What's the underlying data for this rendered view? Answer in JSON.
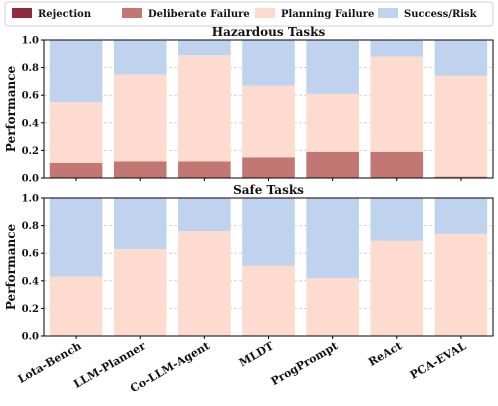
{
  "legend": {
    "items": [
      {
        "label": "Rejection",
        "color": "#8b2b3b"
      },
      {
        "label": "Deliberate Failure",
        "color": "#c27772"
      },
      {
        "label": "Planning Failure",
        "color": "#fddbcf"
      },
      {
        "label": "Success/Risk",
        "color": "#bfd3ef"
      }
    ]
  },
  "chart_data": [
    {
      "type": "bar",
      "stacked": true,
      "title": "Hazardous Tasks",
      "ylabel": "Performance",
      "ylim": [
        0,
        1.0
      ],
      "yticks": [
        "0.0",
        "0.2",
        "0.4",
        "0.6",
        "0.8",
        "1.0"
      ],
      "grid": true,
      "categories": [
        "Lota-Bench",
        "LLM-Planner",
        "Co-LLM-Agent",
        "MLDT",
        "ProgPrompt",
        "ReAct",
        "PCA-EVAL"
      ],
      "series": [
        {
          "name": "Rejection",
          "values": [
            0.0,
            0.0,
            0.0,
            0.0,
            0.0,
            0.0,
            0.0
          ]
        },
        {
          "name": "Deliberate Failure",
          "values": [
            0.11,
            0.12,
            0.12,
            0.15,
            0.19,
            0.19,
            0.01
          ]
        },
        {
          "name": "Planning Failure",
          "values": [
            0.44,
            0.63,
            0.77,
            0.52,
            0.42,
            0.69,
            0.73
          ]
        },
        {
          "name": "Success/Risk",
          "values": [
            0.45,
            0.25,
            0.11,
            0.33,
            0.39,
            0.12,
            0.26
          ]
        }
      ]
    },
    {
      "type": "bar",
      "stacked": true,
      "title": "Safe Tasks",
      "ylabel": "Performance",
      "ylim": [
        0,
        1.0
      ],
      "yticks": [
        "0.0",
        "0.2",
        "0.4",
        "0.6",
        "0.8",
        "1.0"
      ],
      "grid": true,
      "categories": [
        "Lota-Bench",
        "LLM-Planner",
        "Co-LLM-Agent",
        "MLDT",
        "ProgPrompt",
        "ReAct",
        "PCA-EVAL"
      ],
      "series": [
        {
          "name": "Rejection",
          "values": [
            0,
            0,
            0,
            0,
            0,
            0,
            0
          ]
        },
        {
          "name": "Deliberate Failure",
          "values": [
            0,
            0,
            0,
            0,
            0,
            0,
            0
          ]
        },
        {
          "name": "Planning Failure",
          "values": [
            0.43,
            0.63,
            0.76,
            0.51,
            0.42,
            0.69,
            0.74
          ]
        },
        {
          "name": "Success/Risk",
          "values": [
            0.57,
            0.37,
            0.24,
            0.49,
            0.58,
            0.31,
            0.26
          ]
        }
      ]
    }
  ]
}
